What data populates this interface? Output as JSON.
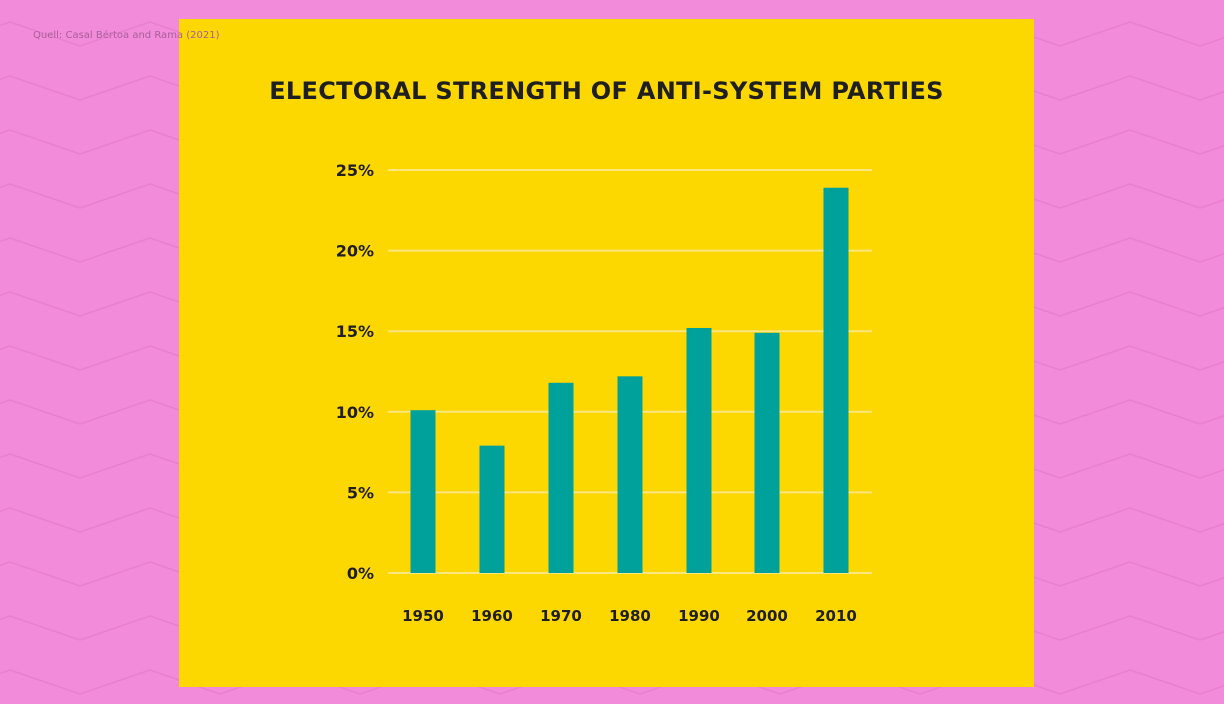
{
  "source": "Quell: Casal Bértoa and Rama (2021)",
  "colors": {
    "background": "#f28bd9",
    "panel": "#fcd700",
    "bar": "#00a19a",
    "grid": "#fbe680",
    "text": "#1f1f1f"
  },
  "chart_data": {
    "type": "bar",
    "title": "ELECTORAL STRENGTH OF ANTI-SYSTEM PARTIES",
    "xlabel": "",
    "ylabel": "",
    "categories": [
      "1950",
      "1960",
      "1970",
      "1980",
      "1990",
      "2000",
      "2010"
    ],
    "values": [
      10.1,
      7.9,
      11.8,
      12.2,
      15.2,
      14.9,
      23.9
    ],
    "ylim": [
      0,
      25
    ],
    "yticks": [
      0,
      5,
      10,
      15,
      20,
      25
    ],
    "ytick_labels": [
      "0%",
      "5%",
      "10%",
      "15%",
      "20%",
      "25%"
    ],
    "grid": true,
    "legend": "none"
  }
}
